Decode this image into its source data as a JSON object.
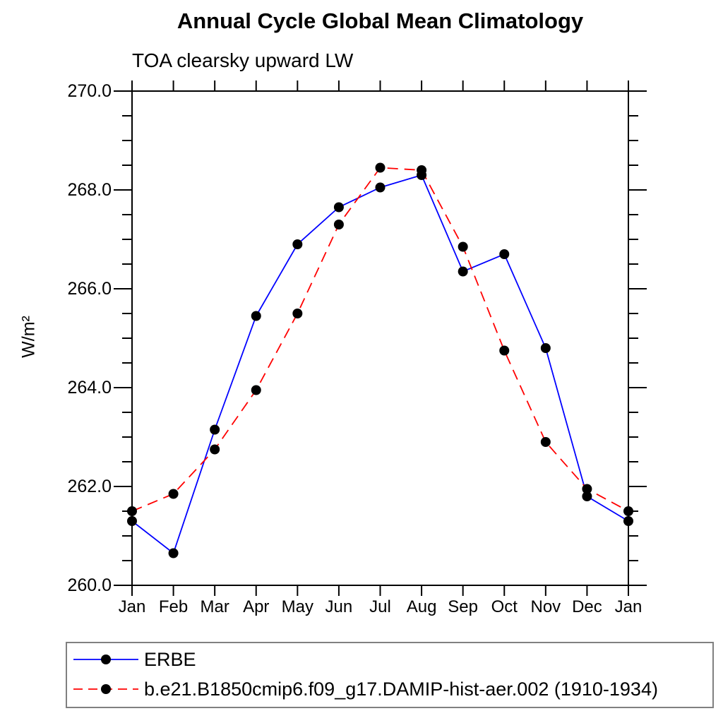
{
  "chart_data": {
    "type": "line",
    "title": "Annual Cycle Global Mean Climatology",
    "subtitle": "TOA clearsky upward LW",
    "ylabel": "W/m²",
    "xlabel": "",
    "categories": [
      "Jan",
      "Feb",
      "Mar",
      "Apr",
      "May",
      "Jun",
      "Jul",
      "Aug",
      "Sep",
      "Oct",
      "Nov",
      "Dec",
      "Jan"
    ],
    "ylim": [
      260.0,
      270.0
    ],
    "y_major_tick_labels": [
      "260.0",
      "262.0",
      "264.0",
      "266.0",
      "268.0",
      "270.0"
    ],
    "y_major_step": 2.0,
    "y_minor_step": 0.5,
    "grid": false,
    "legend_position": "bottom-left-box",
    "axis_color": "#000000",
    "marker_color": "#000000",
    "series": [
      {
        "name": "ERBE",
        "color": "#0000ff",
        "line_style": "solid",
        "marker": "filled-circle",
        "values": [
          261.3,
          260.65,
          263.15,
          265.45,
          266.9,
          267.65,
          268.05,
          268.3,
          266.35,
          266.7,
          264.8,
          261.8,
          261.3
        ]
      },
      {
        "name": "b.e21.B1850cmip6.f09_g17.DAMIP-hist-aer.002 (1910-1934)",
        "color": "#ff0000",
        "line_style": "dashed",
        "marker": "filled-circle",
        "values": [
          261.5,
          261.85,
          262.75,
          263.95,
          265.5,
          267.3,
          268.45,
          268.4,
          266.85,
          264.75,
          262.9,
          261.95,
          261.5
        ]
      }
    ]
  }
}
